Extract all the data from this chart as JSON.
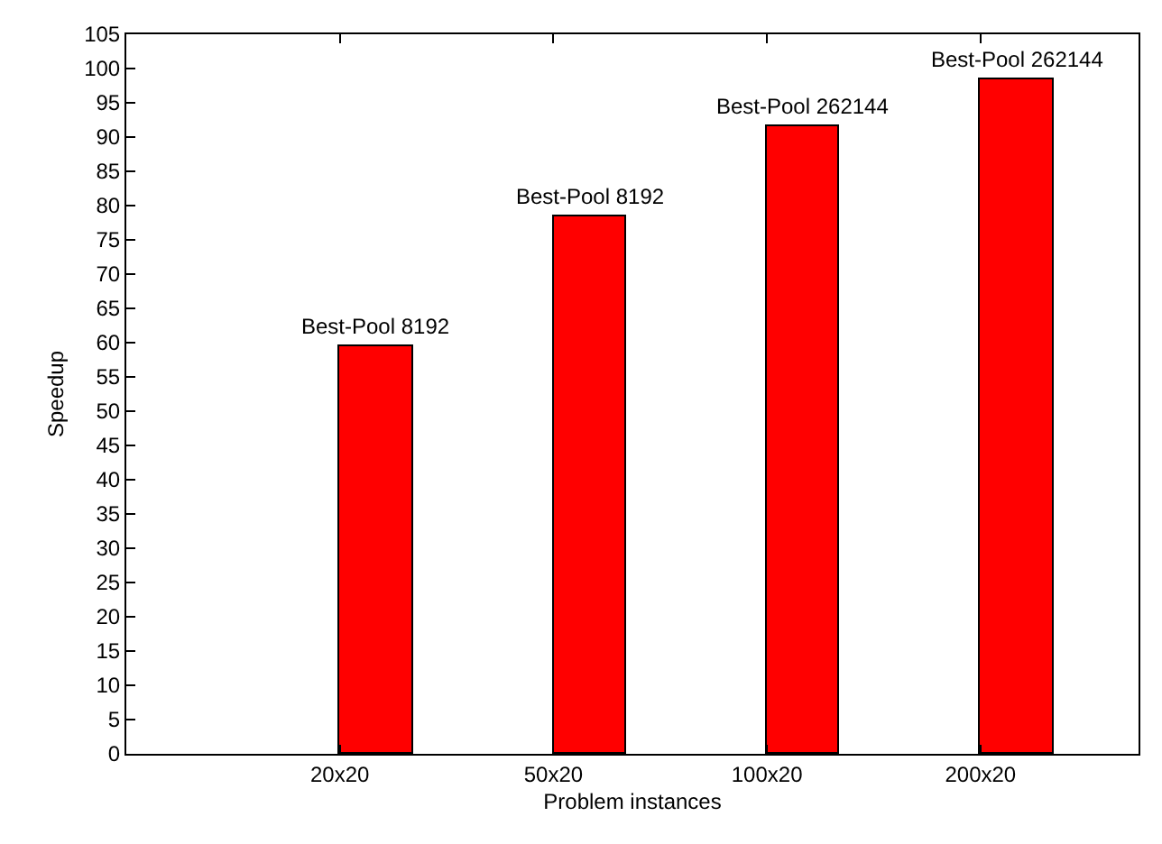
{
  "chart_data": {
    "type": "bar",
    "xlabel": "Problem instances",
    "ylabel": "Speedup",
    "categories": [
      "20x20",
      "50x20",
      "100x20",
      "200x20"
    ],
    "values": [
      59.5,
      78.5,
      91.5,
      98.5
    ],
    "color": "#ff0000",
    "ylim": [
      0,
      105
    ],
    "yticks": [
      0,
      5,
      10,
      15,
      20,
      25,
      30,
      35,
      40,
      45,
      50,
      55,
      60,
      65,
      70,
      75,
      80,
      85,
      90,
      95,
      100,
      105
    ],
    "annotations": [
      {
        "text": "Best-Pool 8192",
        "x": "20x20",
        "y": 59.5
      },
      {
        "text": "Best-Pool 8192",
        "x": "50x20",
        "y": 78.5
      },
      {
        "text": "Best-Pool 262144",
        "x": "100x20",
        "y": 91.5
      },
      {
        "text": "Best-Pool 262144",
        "x": "200x20",
        "y": 98.5
      }
    ]
  }
}
